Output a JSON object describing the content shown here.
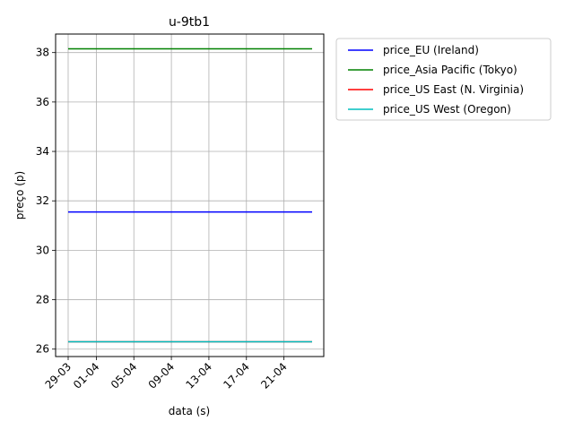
{
  "chart_data": {
    "type": "line",
    "title": "u-9tb1",
    "xlabel": "data (s)",
    "ylabel": "preço (p)",
    "x_ticks": [
      "29-03",
      "01-04",
      "05-04",
      "09-04",
      "13-04",
      "17-04",
      "21-04"
    ],
    "y_ticks": [
      "26",
      "28",
      "30",
      "32",
      "34",
      "36",
      "38"
    ],
    "x": [
      "2023-03-29",
      "2023-04-24"
    ],
    "ylim": [
      25.7,
      38.75
    ],
    "grid": true,
    "legend_position": "outside-top-right",
    "series": [
      {
        "name": "price_EU (Ireland)",
        "color": "#0000ff",
        "x": [
          "2023-03-29",
          "2023-04-24"
        ],
        "y": [
          31.55,
          31.55
        ]
      },
      {
        "name": "price_Asia Pacific (Tokyo)",
        "color": "#008000",
        "x": [
          "2023-03-29",
          "2023-04-24"
        ],
        "y": [
          38.15,
          38.15
        ]
      },
      {
        "name": "price_US East (N. Virginia)",
        "color": "#ff0000",
        "x": [
          "2023-03-29",
          "2023-04-24"
        ],
        "y": [
          26.3,
          26.3
        ]
      },
      {
        "name": "price_US West (Oregon)",
        "color": "#00bfbf",
        "x": [
          "2023-03-29",
          "2023-04-24"
        ],
        "y": [
          26.3,
          26.3
        ]
      }
    ]
  }
}
